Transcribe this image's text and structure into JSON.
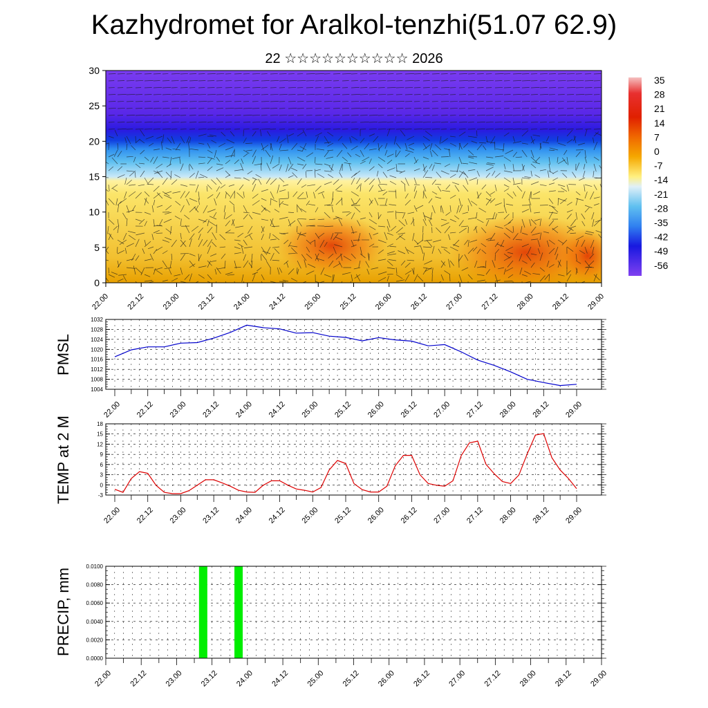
{
  "title": "Kazhydromet for Aralkol-tenzhi(51.07 62.9)",
  "subtitle": "22 ☆☆☆☆☆☆☆☆☆☆ 2026",
  "colors": {
    "pmsl_line": "#0000cc",
    "temp_line": "#dd0000",
    "precip_bar": "#00ee00"
  },
  "time_ticks": [
    "22.00",
    "22.12",
    "23.00",
    "23.12",
    "24.00",
    "24.12",
    "25.00",
    "25.12",
    "26.00",
    "26.12",
    "27.00",
    "27.12",
    "28.00",
    "28.12",
    "29.00"
  ],
  "chart_data": [
    {
      "type": "heatmap",
      "name": "temperature-wind cross-section",
      "ylim": [
        0,
        30
      ],
      "y_ticks": [
        0,
        5,
        10,
        15,
        20,
        25,
        30
      ],
      "x_ticks": [
        "22.00",
        "22.12",
        "23.00",
        "23.12",
        "24.00",
        "24.12",
        "25.00",
        "25.12",
        "26.00",
        "26.12",
        "27.00",
        "27.12",
        "28.00",
        "28.12",
        "29.00"
      ],
      "colorbar_labels": [
        "35",
        "28",
        "21",
        "14",
        "7",
        "0",
        "-7",
        "-14",
        "-21",
        "-28",
        "-35",
        "-42",
        "-49",
        "-56"
      ],
      "overlay": "wind vectors",
      "grid": false
    },
    {
      "type": "line",
      "ylabel": "PMSL",
      "ylim": [
        1004,
        1032
      ],
      "y_ticks": [
        "1004",
        "1008",
        "1012",
        "1016",
        "1020",
        "1024",
        "1028",
        "1032"
      ],
      "x": [
        "22.00",
        "22.06",
        "22.12",
        "22.18",
        "23.00",
        "23.06",
        "23.12",
        "23.18",
        "24.00",
        "24.06",
        "24.12",
        "24.18",
        "25.00",
        "25.06",
        "25.12",
        "25.18",
        "26.00",
        "26.06",
        "26.12",
        "26.18",
        "27.00",
        "27.06",
        "27.12",
        "27.18",
        "28.00",
        "28.06",
        "28.12",
        "28.18",
        "29.00"
      ],
      "values": [
        1017,
        1019.8,
        1021,
        1021,
        1022.5,
        1022.7,
        1024.5,
        1026.8,
        1029.7,
        1028.7,
        1028.2,
        1026.5,
        1026.7,
        1025.3,
        1024.8,
        1023.4,
        1024.7,
        1023.8,
        1023.3,
        1021.4,
        1021.9,
        1019,
        1015.7,
        1013.6,
        1011,
        1008,
        1006.7,
        1005.5,
        1006
      ],
      "grid": true
    },
    {
      "type": "line",
      "ylabel": "TEMP at 2 M",
      "ylim": [
        -3,
        18
      ],
      "y_ticks": [
        "-3",
        "0",
        "3",
        "6",
        "9",
        "12",
        "15",
        "18"
      ],
      "x": [
        "22.00",
        "22.03",
        "22.06",
        "22.09",
        "22.12",
        "22.15",
        "22.18",
        "22.21",
        "23.00",
        "23.03",
        "23.06",
        "23.09",
        "23.12",
        "23.15",
        "23.18",
        "23.21",
        "24.00",
        "24.03",
        "24.06",
        "24.09",
        "24.12",
        "24.15",
        "24.18",
        "24.21",
        "25.00",
        "25.03",
        "25.06",
        "25.09",
        "25.12",
        "25.15",
        "25.18",
        "25.21",
        "26.00",
        "26.03",
        "26.06",
        "26.09",
        "26.12",
        "26.15",
        "26.18",
        "26.21",
        "27.00",
        "27.03",
        "27.06",
        "27.09",
        "27.12",
        "27.15",
        "27.18",
        "27.21",
        "28.00",
        "28.03",
        "28.06",
        "28.09",
        "28.12",
        "28.15",
        "28.18",
        "28.21",
        "29.00"
      ],
      "values": [
        -1.3,
        -2.2,
        1.9,
        3.9,
        3.4,
        -0.1,
        -2.2,
        -2.6,
        -2.6,
        -1.7,
        -0.1,
        1.5,
        1.5,
        0.6,
        -0.4,
        -1.6,
        -2.1,
        -2.2,
        -0.1,
        1.2,
        1.2,
        -0.1,
        -1.2,
        -1.6,
        -2.1,
        -0.8,
        4.4,
        7.2,
        6.3,
        0.4,
        -1.4,
        -2.1,
        -2.1,
        -0.4,
        5.6,
        8.7,
        8.7,
        3,
        0.4,
        -0.1,
        -0.4,
        1.2,
        8.6,
        12.4,
        12.9,
        6.1,
        3.3,
        1,
        0.4,
        2.9,
        9.1,
        14.7,
        15.1,
        8,
        4.4,
        1.9,
        -1.1
      ],
      "grid": true
    },
    {
      "type": "bar",
      "ylabel": "PRECIP, mm",
      "ylim": [
        0,
        0.01
      ],
      "y_ticks": [
        "0.0000",
        "0.0020",
        "0.0040",
        "0.0060",
        "0.0080",
        "0.0100"
      ],
      "x": [
        "23.09",
        "23.21"
      ],
      "values": [
        0.01,
        0.01
      ],
      "grid": true
    }
  ]
}
